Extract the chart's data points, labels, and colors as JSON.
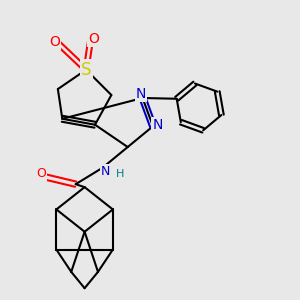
{
  "bg_color": "#e8e8e8",
  "bond_color": "#000000",
  "bond_width": 1.5,
  "atom_colors": {
    "S": "#cccc00",
    "N": "#0000cc",
    "O": "#ff0000",
    "H": "#008080",
    "C": "#000000"
  }
}
